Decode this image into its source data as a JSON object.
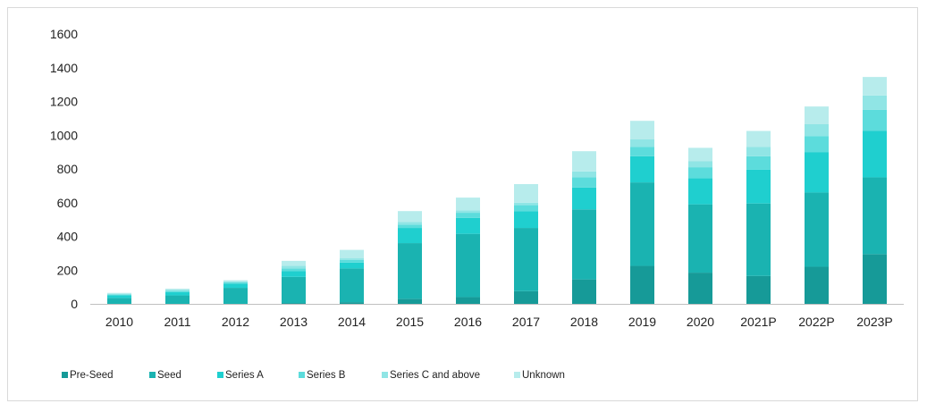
{
  "chart_data": {
    "type": "bar",
    "stacked": true,
    "title": "",
    "xlabel": "",
    "ylabel": "",
    "categories": [
      "2010",
      "2011",
      "2012",
      "2013",
      "2014",
      "2015",
      "2016",
      "2017",
      "2018",
      "2019",
      "2020",
      "2021P",
      "2022P",
      "2023P"
    ],
    "ylim": [
      0,
      1600
    ],
    "yticks": [
      0,
      200,
      400,
      600,
      800,
      1000,
      1200,
      1400,
      1600
    ],
    "grid": false,
    "legend_position": "bottom-left",
    "series": [
      {
        "name": "Pre-Seed",
        "color": "#169a98",
        "values": [
          0,
          0,
          0,
          5,
          10,
          30,
          40,
          75,
          145,
          225,
          185,
          165,
          220,
          295
        ]
      },
      {
        "name": "Seed",
        "color": "#1ab3b1",
        "values": [
          35,
          50,
          95,
          155,
          200,
          330,
          375,
          375,
          415,
          495,
          405,
          430,
          440,
          455
        ]
      },
      {
        "name": "Series A",
        "color": "#1fcfcf",
        "values": [
          15,
          20,
          25,
          35,
          35,
          90,
          95,
          100,
          130,
          155,
          155,
          200,
          240,
          275
        ]
      },
      {
        "name": "Series B",
        "color": "#5cdcdc",
        "values": [
          5,
          7,
          7,
          15,
          15,
          20,
          30,
          35,
          60,
          55,
          65,
          80,
          95,
          125
        ]
      },
      {
        "name": "Series C and above",
        "color": "#90e5e5",
        "values": [
          5,
          5,
          5,
          15,
          10,
          15,
          15,
          15,
          35,
          45,
          35,
          55,
          70,
          85
        ]
      },
      {
        "name": "Unknown",
        "color": "#b7ecec",
        "values": [
          5,
          8,
          8,
          30,
          50,
          65,
          75,
          110,
          120,
          110,
          80,
          95,
          105,
          110
        ]
      }
    ]
  }
}
